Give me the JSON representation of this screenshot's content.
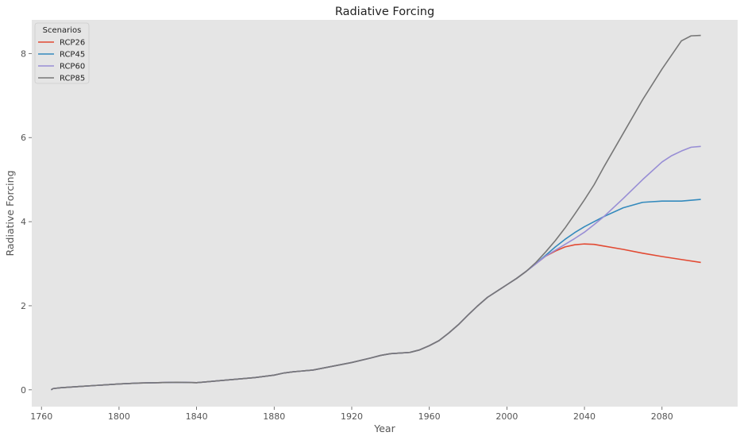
{
  "chart_data": {
    "type": "line",
    "title": "Radiative Forcing",
    "xlabel": "Year",
    "ylabel": "Radiative Forcing",
    "xlim": [
      1755,
      2119
    ],
    "ylim": [
      -0.4,
      8.8
    ],
    "xticks": [
      1760,
      1800,
      1840,
      1880,
      1920,
      1960,
      2000,
      2040,
      2080
    ],
    "yticks": [
      0,
      2,
      4,
      6,
      8
    ],
    "grid": false,
    "legend": {
      "title": "Scenarios",
      "placement": "top-left"
    },
    "series": [
      {
        "name": "RCP26",
        "color": "#e24a33",
        "x": [
          1765,
          1766,
          1770,
          1780,
          1790,
          1800,
          1810,
          1820,
          1830,
          1840,
          1850,
          1860,
          1870,
          1880,
          1885,
          1890,
          1900,
          1910,
          1920,
          1930,
          1935,
          1940,
          1950,
          1955,
          1960,
          1965,
          1970,
          1975,
          1980,
          1985,
          1990,
          1995,
          2000,
          2005,
          2010,
          2015,
          2020,
          2025,
          2030,
          2035,
          2040,
          2045,
          2050,
          2060,
          2070,
          2080,
          2090,
          2100
        ],
        "y": [
          0.0,
          0.03,
          0.05,
          0.08,
          0.11,
          0.14,
          0.16,
          0.17,
          0.18,
          0.17,
          0.21,
          0.25,
          0.29,
          0.35,
          0.4,
          0.43,
          0.47,
          0.56,
          0.65,
          0.76,
          0.82,
          0.86,
          0.89,
          0.95,
          1.05,
          1.17,
          1.35,
          1.55,
          1.78,
          2.0,
          2.2,
          2.35,
          2.5,
          2.65,
          2.82,
          3.0,
          3.18,
          3.3,
          3.4,
          3.45,
          3.47,
          3.46,
          3.42,
          3.34,
          3.25,
          3.17,
          3.1,
          3.03
        ]
      },
      {
        "name": "RCP45",
        "color": "#348abd",
        "x": [
          1765,
          1766,
          1770,
          1780,
          1790,
          1800,
          1810,
          1820,
          1830,
          1840,
          1850,
          1860,
          1870,
          1880,
          1885,
          1890,
          1900,
          1910,
          1920,
          1930,
          1935,
          1940,
          1950,
          1955,
          1960,
          1965,
          1970,
          1975,
          1980,
          1985,
          1990,
          1995,
          2000,
          2005,
          2010,
          2015,
          2020,
          2025,
          2030,
          2035,
          2040,
          2045,
          2050,
          2060,
          2070,
          2080,
          2090,
          2100
        ],
        "y": [
          0.0,
          0.03,
          0.05,
          0.08,
          0.11,
          0.14,
          0.16,
          0.17,
          0.18,
          0.17,
          0.21,
          0.25,
          0.29,
          0.35,
          0.4,
          0.43,
          0.47,
          0.56,
          0.65,
          0.76,
          0.82,
          0.86,
          0.89,
          0.95,
          1.05,
          1.17,
          1.35,
          1.55,
          1.78,
          2.0,
          2.2,
          2.35,
          2.5,
          2.65,
          2.82,
          3.0,
          3.2,
          3.4,
          3.58,
          3.74,
          3.88,
          4.0,
          4.12,
          4.33,
          4.46,
          4.49,
          4.49,
          4.53
        ]
      },
      {
        "name": "RCP60",
        "color": "#988ed5",
        "x": [
          1765,
          1766,
          1770,
          1780,
          1790,
          1800,
          1810,
          1820,
          1830,
          1840,
          1850,
          1860,
          1870,
          1880,
          1885,
          1890,
          1900,
          1910,
          1920,
          1930,
          1935,
          1940,
          1950,
          1955,
          1960,
          1965,
          1970,
          1975,
          1980,
          1985,
          1990,
          1995,
          2000,
          2005,
          2010,
          2015,
          2020,
          2025,
          2030,
          2035,
          2040,
          2045,
          2050,
          2060,
          2070,
          2080,
          2085,
          2090,
          2095,
          2100
        ],
        "y": [
          0.0,
          0.03,
          0.05,
          0.08,
          0.11,
          0.14,
          0.16,
          0.17,
          0.18,
          0.17,
          0.21,
          0.25,
          0.29,
          0.35,
          0.4,
          0.43,
          0.47,
          0.56,
          0.65,
          0.76,
          0.82,
          0.86,
          0.89,
          0.95,
          1.05,
          1.17,
          1.35,
          1.55,
          1.78,
          2.0,
          2.2,
          2.35,
          2.5,
          2.65,
          2.82,
          3.0,
          3.18,
          3.32,
          3.46,
          3.6,
          3.75,
          3.93,
          4.12,
          4.55,
          5.0,
          5.42,
          5.57,
          5.68,
          5.77,
          5.79
        ]
      },
      {
        "name": "RCP85",
        "color": "#777777",
        "x": [
          1765,
          1766,
          1770,
          1780,
          1790,
          1800,
          1810,
          1820,
          1830,
          1840,
          1850,
          1860,
          1870,
          1880,
          1885,
          1890,
          1900,
          1910,
          1920,
          1930,
          1935,
          1940,
          1950,
          1955,
          1960,
          1965,
          1970,
          1975,
          1980,
          1985,
          1990,
          1995,
          2000,
          2005,
          2010,
          2015,
          2020,
          2025,
          2030,
          2035,
          2040,
          2045,
          2050,
          2060,
          2070,
          2080,
          2090,
          2095,
          2100
        ],
        "y": [
          0.0,
          0.03,
          0.05,
          0.08,
          0.11,
          0.14,
          0.16,
          0.17,
          0.18,
          0.17,
          0.21,
          0.25,
          0.29,
          0.35,
          0.4,
          0.43,
          0.47,
          0.56,
          0.65,
          0.76,
          0.82,
          0.86,
          0.89,
          0.95,
          1.05,
          1.17,
          1.35,
          1.55,
          1.78,
          2.0,
          2.2,
          2.35,
          2.5,
          2.65,
          2.82,
          3.03,
          3.28,
          3.55,
          3.85,
          4.18,
          4.52,
          4.88,
          5.3,
          6.1,
          6.9,
          7.63,
          8.3,
          8.42,
          8.43
        ]
      }
    ]
  }
}
